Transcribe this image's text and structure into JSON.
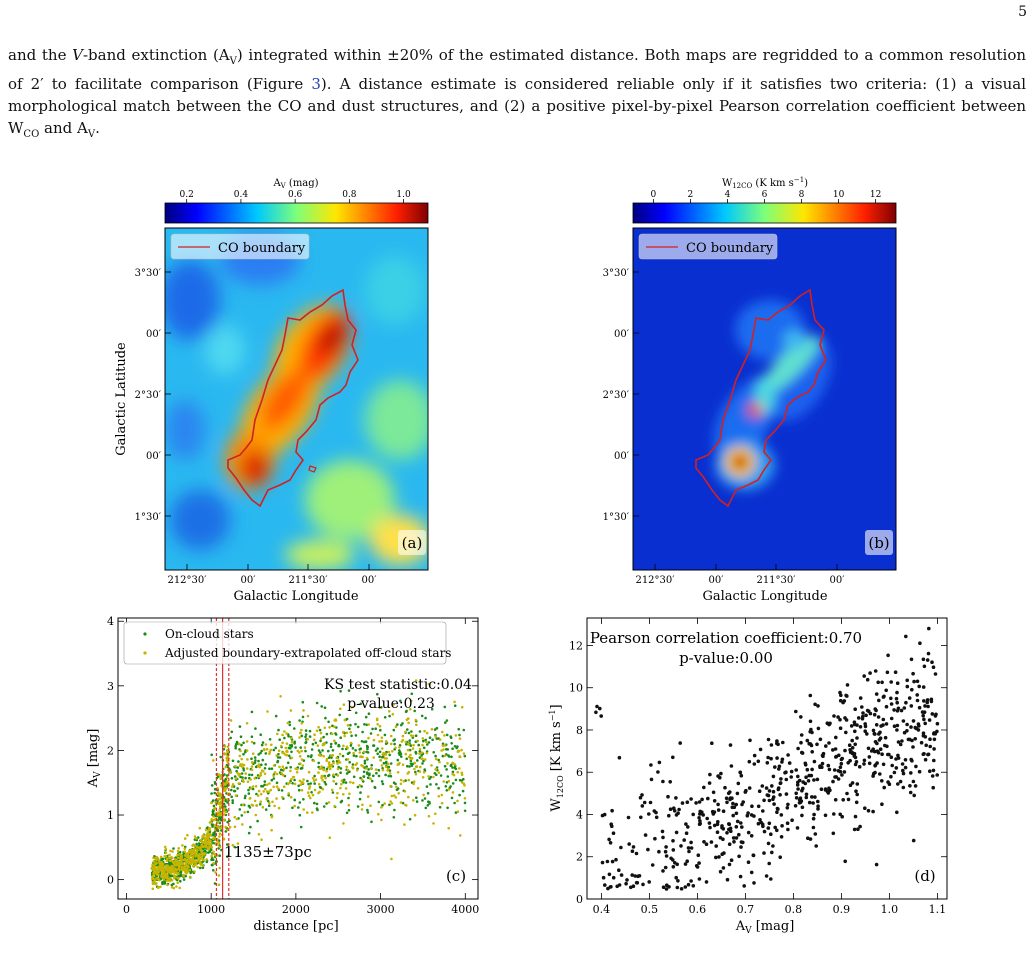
{
  "page_number": "5",
  "paragraph": {
    "p1": "and the ",
    "vband": "V",
    "p2": "-band extinction (A",
    "p2sub": "V",
    "p3": ") integrated within ±20% of the estimated distance. Both maps are regridded to a common resolution of 2′ to facilitate comparison (Figure ",
    "figref": "3",
    "p4": "). A distance estimate is considered reliable only if it satisfies two criteria: (1) a visual morphological match between the CO and dust structures, and (2) a positive pixel-by-pixel Pearson correlation coefficient between W",
    "p4sub": "CO",
    "p5": " and A",
    "p5sub": "V",
    "p6": "."
  },
  "colors": {
    "boundary": "#d42020",
    "scatter_on": "#1a8c1a",
    "scatter_off": "#c8b400",
    "vline": "#e03030",
    "points_d": "#111111"
  },
  "panel_a": {
    "colorbar_title": "A",
    "colorbar_title_sub": "V",
    "colorbar_title_unit": " (mag)",
    "colorbar_ticks": [
      "0.2",
      "0.4",
      "0.6",
      "0.8",
      "1.0"
    ],
    "legend": "CO boundary",
    "ylabel": "Galactic Latitude",
    "xlabel": "Galactic Longitude",
    "yticks": [
      "3°30′",
      "00′",
      "2°30′",
      "00′",
      "1°30′"
    ],
    "xticks": [
      "212°30′",
      "00′",
      "211°30′",
      "00′"
    ],
    "label": "(a)"
  },
  "panel_b": {
    "colorbar_title": "W",
    "colorbar_title_sub": "12CO",
    "colorbar_title_unit": " (K km s",
    "colorbar_title_sup": "−1",
    "colorbar_title_end": ")",
    "colorbar_ticks": [
      "0",
      "2",
      "4",
      "6",
      "8",
      "10",
      "12"
    ],
    "legend": "CO boundary",
    "xlabel": "Galactic Longitude",
    "yticks": [
      "3°30′",
      "00′",
      "2°30′",
      "00′",
      "1°30′"
    ],
    "xticks": [
      "212°30′",
      "00′",
      "211°30′",
      "00′"
    ],
    "label": "(b)"
  },
  "chart_data": [
    {
      "type": "scatter",
      "panel": "c",
      "xlabel": "distance [pc]",
      "ylabel": "A",
      "ylabel_sub": "V",
      "ylabel_unit": " [mag]",
      "xlim": [
        -100,
        4150
      ],
      "ylim": [
        -0.3,
        4.05
      ],
      "xticks": [
        0,
        1000,
        2000,
        3000,
        4000
      ],
      "yticks": [
        0,
        1,
        2,
        3,
        4
      ],
      "legend": [
        "On-cloud stars",
        "Adjusted boundary-extrapolated off-cloud stars"
      ],
      "annotation_ks": "KS test statistic:0.04",
      "annotation_p": "p-value:0.23",
      "distance_label": "1135±73pc",
      "distance_pc": 1135,
      "distance_err_pc": 73,
      "label": "(c)",
      "series": [
        {
          "name": "On-cloud stars",
          "trend": [
            [
              100,
              0.1
            ],
            [
              300,
              0.1
            ],
            [
              500,
              0.15
            ],
            [
              700,
              0.25
            ],
            [
              900,
              0.45
            ],
            [
              1050,
              0.8
            ],
            [
              1150,
              1.3
            ],
            [
              1300,
              1.55
            ],
            [
              1600,
              1.7
            ],
            [
              2000,
              1.85
            ],
            [
              2500,
              1.9
            ],
            [
              3000,
              1.85
            ],
            [
              3500,
              1.8
            ],
            [
              4000,
              1.75
            ]
          ],
          "count": 1200,
          "scatter_sd": 0.4
        },
        {
          "name": "Adjusted boundary-extrapolated off-cloud stars",
          "trend": [
            [
              100,
              0.1
            ],
            [
              300,
              0.1
            ],
            [
              500,
              0.15
            ],
            [
              700,
              0.25
            ],
            [
              900,
              0.45
            ],
            [
              1050,
              0.8
            ],
            [
              1150,
              1.3
            ],
            [
              1300,
              1.5
            ],
            [
              1600,
              1.65
            ],
            [
              2000,
              1.8
            ],
            [
              2500,
              1.85
            ],
            [
              3000,
              1.85
            ],
            [
              3500,
              1.8
            ],
            [
              4000,
              1.75
            ]
          ],
          "count": 1000,
          "scatter_sd": 0.4
        }
      ]
    },
    {
      "type": "scatter",
      "panel": "d",
      "xlabel": "A",
      "xlabel_sub": "V",
      "xlabel_unit": " [mag]",
      "ylabel": "W",
      "ylabel_sub": "12CO",
      "ylabel_unit": " [K km s",
      "ylabel_sup": "−1",
      "ylabel_end": "]",
      "xlim": [
        0.37,
        1.12
      ],
      "ylim": [
        0,
        13.3
      ],
      "xticks": [
        0.4,
        0.5,
        0.6,
        0.7,
        0.8,
        0.9,
        1.0,
        1.1
      ],
      "yticks": [
        0,
        2,
        4,
        6,
        8,
        10,
        12
      ],
      "annotation_r": "Pearson correlation coefficient:0.70",
      "annotation_p": "p-value:0.00",
      "pearson_r": 0.7,
      "p_value": 0.0,
      "label": "(d)",
      "series": [
        {
          "name": "",
          "trend": [
            [
              0.4,
              1.8
            ],
            [
              0.5,
              2.4
            ],
            [
              0.6,
              3.2
            ],
            [
              0.7,
              4.2
            ],
            [
              0.8,
              5.6
            ],
            [
              0.9,
              6.8
            ],
            [
              1.0,
              7.6
            ],
            [
              1.1,
              8.3
            ]
          ],
          "count": 700,
          "scatter_sd": 1.6
        }
      ]
    }
  ]
}
